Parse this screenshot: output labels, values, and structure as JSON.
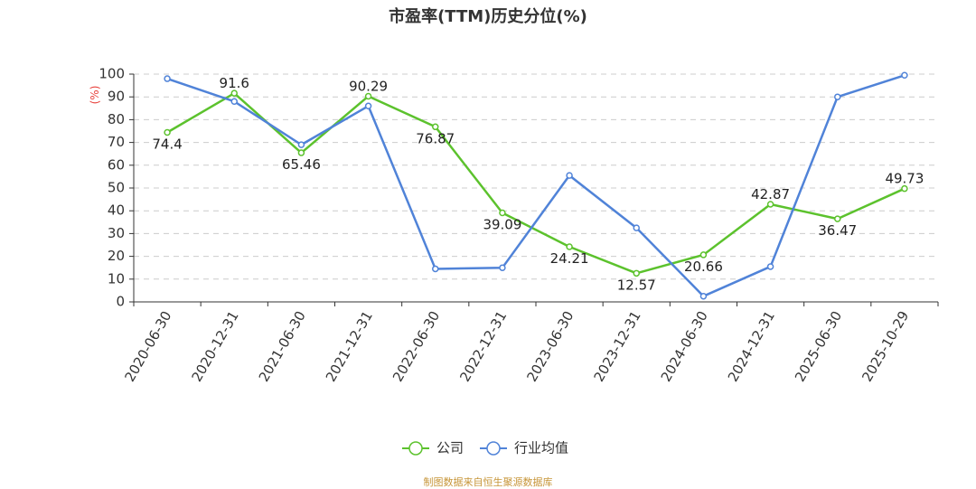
{
  "chart_data": {
    "type": "line",
    "title": "市盈率(TTM)历史分位(%)",
    "ylabel": "(%)",
    "ylim": [
      0,
      100
    ],
    "yticks": [
      0,
      10,
      20,
      30,
      40,
      50,
      60,
      70,
      80,
      90,
      100
    ],
    "categories": [
      "2020-06-30",
      "2020-12-31",
      "2021-06-30",
      "2021-12-31",
      "2022-06-30",
      "2022-12-31",
      "2023-06-30",
      "2023-12-31",
      "2024-06-30",
      "2024-12-31",
      "2025-06-30",
      "2025-10-29"
    ],
    "grid": true,
    "legend_position": "bottom",
    "series": [
      {
        "name": "公司",
        "color": "#5cc22d",
        "values": [
          74.4,
          91.6,
          65.46,
          90.29,
          76.87,
          39.09,
          24.21,
          12.57,
          20.66,
          42.87,
          36.47,
          49.73
        ],
        "labels": [
          "74.4",
          "91.6",
          "65.46",
          "90.29",
          "76.87",
          "39.09",
          "24.21",
          "12.57",
          "20.66",
          "42.87",
          "36.47",
          "49.73"
        ]
      },
      {
        "name": "行业均值",
        "color": "#5083d8",
        "values": [
          98,
          88,
          69,
          86,
          14.5,
          15,
          55.5,
          32.5,
          2.5,
          15.5,
          90,
          99.5
        ]
      }
    ]
  },
  "footer": {
    "source": "制图数据来自恒生聚源数据库"
  }
}
